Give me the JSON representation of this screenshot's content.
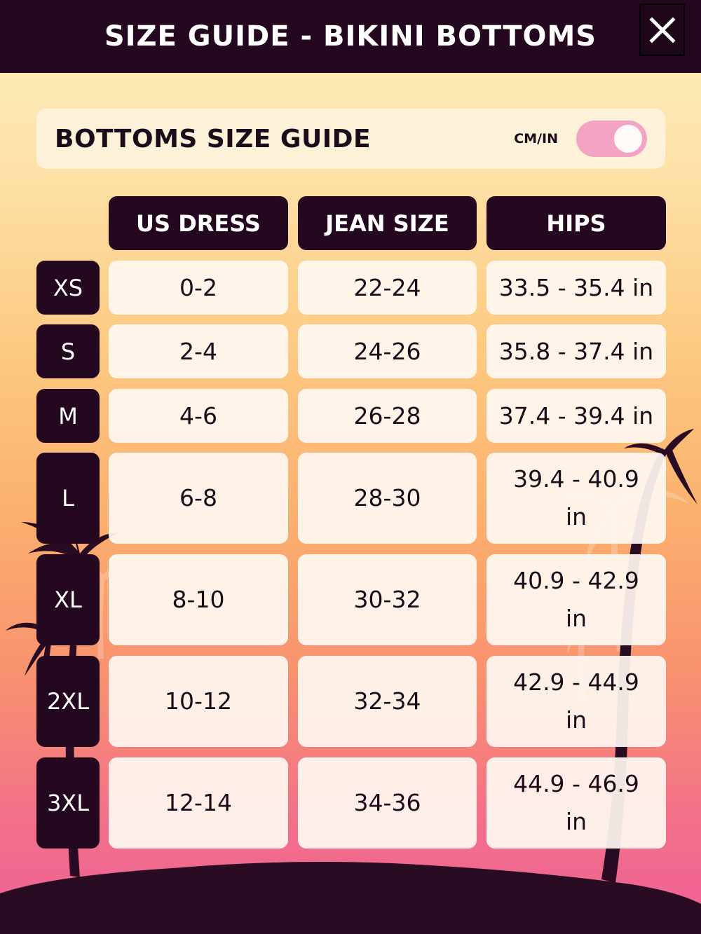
{
  "header": {
    "title": "SIZE GUIDE - BIKINI BOTTOMS",
    "close_icon": "close-icon"
  },
  "panel": {
    "title": "BOTTOMS SIZE GUIDE",
    "unit_toggle_label": "CM/IN",
    "unit_toggle_on": true
  },
  "columns": [
    "US DRESS",
    "JEAN SIZE",
    "HIPS"
  ],
  "rows": [
    {
      "size": "XS",
      "us_dress": "0-2",
      "jean": "22-24",
      "hips": "33.5 - 35.4 in"
    },
    {
      "size": "S",
      "us_dress": "2-4",
      "jean": "24-26",
      "hips": "35.8 - 37.4 in"
    },
    {
      "size": "M",
      "us_dress": "4-6",
      "jean": "26-28",
      "hips": "37.4 - 39.4 in"
    },
    {
      "size": "L",
      "us_dress": "6-8",
      "jean": "28-30",
      "hips": "39.4 - 40.9 in"
    },
    {
      "size": "XL",
      "us_dress": "8-10",
      "jean": "30-32",
      "hips": "40.9 - 42.9 in"
    },
    {
      "size": "2XL",
      "us_dress": "10-12",
      "jean": "32-34",
      "hips": "42.9 - 44.9 in"
    },
    {
      "size": "3XL",
      "us_dress": "12-14",
      "jean": "34-36",
      "hips": "44.9 - 46.9 in"
    }
  ],
  "colors": {
    "dark": "#24081f",
    "toggle": "#f3a3c4"
  }
}
